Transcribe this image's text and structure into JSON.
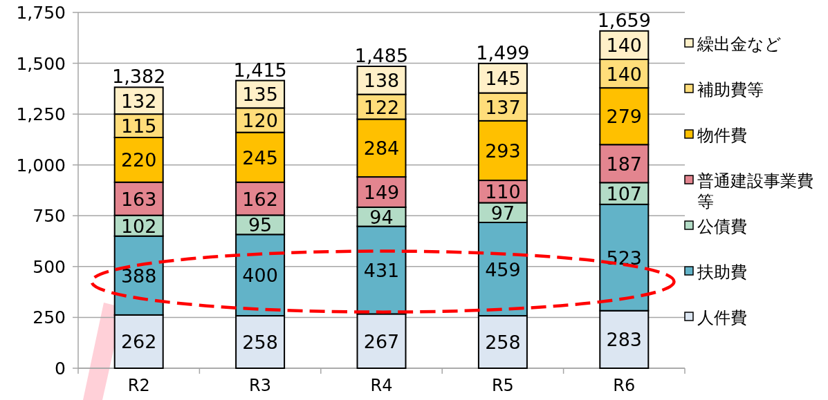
{
  "chart_data": {
    "type": "bar",
    "stacked": true,
    "data_labels": true,
    "grid": "y",
    "legend": "right",
    "categories": [
      "R2",
      "R3",
      "R4",
      "R5",
      "R6"
    ],
    "ylim": [
      0,
      1750
    ],
    "yticks": [
      0,
      250,
      500,
      750,
      {
        "value": 1000,
        "label": "1,000"
      },
      {
        "value": 1250,
        "label": "1,250"
      },
      {
        "value": 1500,
        "label": "1,500"
      },
      {
        "value": 1750,
        "label": "1,750"
      }
    ],
    "totals": [
      "1,382",
      "1,415",
      "1,485",
      "1,499",
      "1,659"
    ],
    "series": [
      {
        "name": "人件費",
        "color": "#dce6f2",
        "values": [
          262,
          258,
          267,
          258,
          283
        ]
      },
      {
        "name": "扶助費",
        "color": "#62b3c8",
        "values": [
          388,
          400,
          431,
          459,
          523
        ]
      },
      {
        "name": "公債費",
        "color": "#b3dcc6",
        "values": [
          102,
          95,
          94,
          97,
          107
        ]
      },
      {
        "name": "普通建設事業費等",
        "color": "#e3858f",
        "values": [
          163,
          162,
          149,
          110,
          187
        ]
      },
      {
        "name": "物件費",
        "color": "#ffc000",
        "values": [
          220,
          245,
          284,
          293,
          279
        ]
      },
      {
        "name": "補助費等",
        "color": "#ffdd7a",
        "values": [
          115,
          120,
          122,
          137,
          140
        ]
      },
      {
        "name": "繰出金など",
        "color": "#fff0c8",
        "values": [
          132,
          135,
          138,
          145,
          140
        ]
      }
    ]
  }
}
